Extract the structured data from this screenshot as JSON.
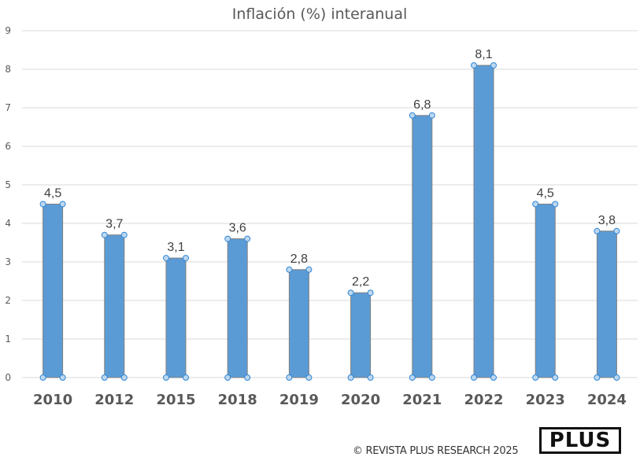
{
  "chart_data": {
    "type": "bar",
    "title": "Inflación (%) interanual",
    "xlabel": "",
    "ylabel": "",
    "categories": [
      "2010",
      "2012",
      "2015",
      "2018",
      "2019",
      "2020",
      "2021",
      "2022",
      "2023",
      "2024"
    ],
    "values": [
      4.5,
      3.7,
      3.1,
      3.6,
      2.8,
      2.2,
      6.8,
      8.1,
      4.5,
      3.8
    ],
    "data_labels": [
      "4,5",
      "3,7",
      "3,1",
      "3,6",
      "2,8",
      "2,2",
      "6,8",
      "8,1",
      "4,5",
      "3,8"
    ],
    "ylim": [
      0,
      9
    ],
    "yticks": [
      0,
      1,
      2,
      3,
      4,
      5,
      6,
      7,
      8,
      9
    ],
    "grid": true,
    "legend": "none",
    "bar_color": "#5B9BD5",
    "bar_edge_color": "#7F7F7F",
    "handle_color": "#BDD7EE"
  },
  "footer": {
    "copyright": "© REVISTA PLUS RESEARCH 2025",
    "logo": "PLUS"
  }
}
